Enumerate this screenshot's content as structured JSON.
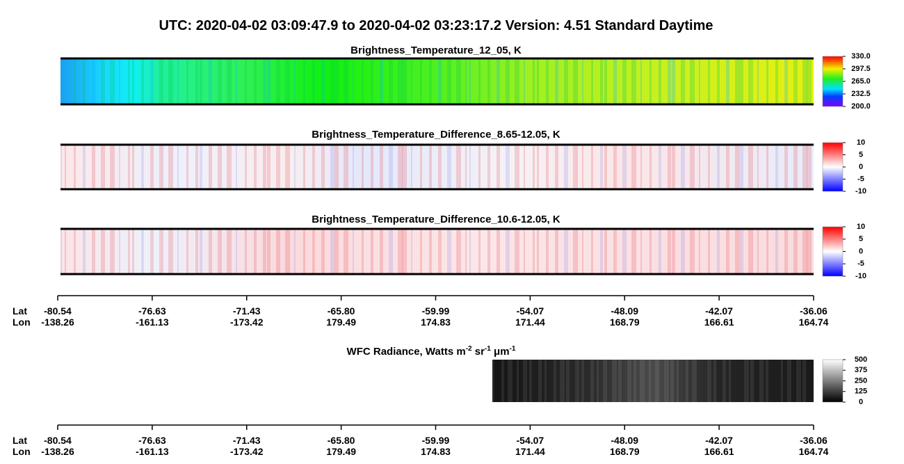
{
  "title": "UTC:  2020-04-02   03:09:47.9  to  2020-04-02   03:23:17.2    Version: 4.51  Standard Daytime",
  "panels": [
    {
      "title": "Brightness_Temperature_12_05, K",
      "colorbar_ticks": [
        {
          "value": 330,
          "label": "330.0"
        },
        {
          "value": 297.5,
          "label": "297.5"
        },
        {
          "value": 265,
          "label": "265.0"
        },
        {
          "value": 232.5,
          "label": "232.5"
        },
        {
          "value": 200,
          "label": "200.0"
        }
      ]
    },
    {
      "title": "Brightness_Temperature_Difference_8.65-12.05, K",
      "colorbar_ticks": [
        10,
        5,
        0,
        -5,
        -10
      ]
    },
    {
      "title": "Brightness_Temperature_Difference_10.6-12.05, K",
      "colorbar_ticks": [
        10,
        5,
        0,
        -5,
        -10
      ]
    }
  ],
  "wfc": {
    "title_parts": [
      "WFC Radiance, Watts m",
      "-2",
      " sr",
      "-1",
      " μm",
      "-1"
    ],
    "colorbar_ticks": [
      500,
      375,
      250,
      125,
      0
    ]
  },
  "axis": {
    "lat_label": "Lat",
    "lon_label": "Lon",
    "lat": [
      "-80.54",
      "-76.63",
      "-71.43",
      "-65.80",
      "-59.99",
      "-54.07",
      "-48.09",
      "-42.07",
      "-36.06"
    ],
    "lon": [
      "-138.26",
      "-161.13",
      "-173.42",
      "179.49",
      "174.83",
      "171.44",
      "168.79",
      "166.61",
      "164.74"
    ]
  }
}
